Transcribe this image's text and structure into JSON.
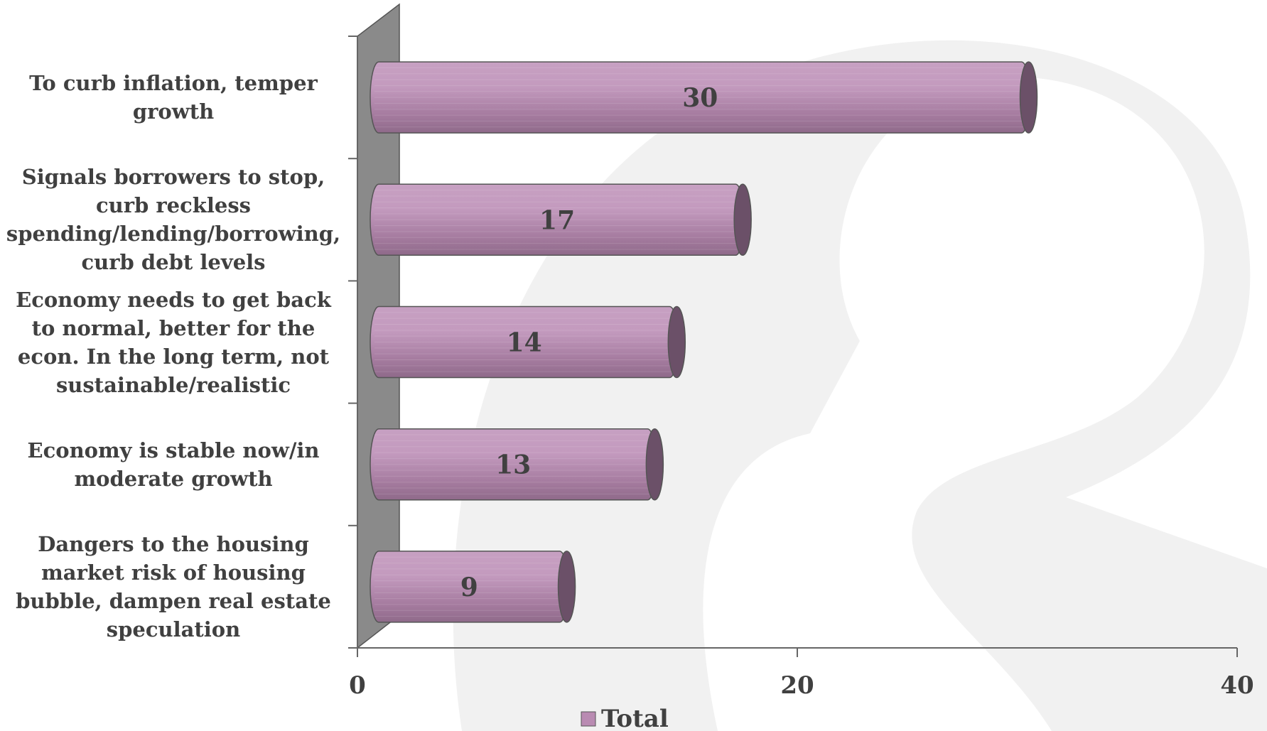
{
  "chart_data": {
    "type": "bar",
    "orientation": "horizontal",
    "categories": [
      "To curb inflation, temper growth",
      "Signals borrowers to stop, curb reckless spending/lending/borrowing, curb debt levels",
      "Economy needs to get back to normal, better for the econ. In the long term, not sustainable/realistic",
      "Economy is stable now/in moderate growth",
      "Dangers to the housing market risk of housing bubble, dampen real estate speculation"
    ],
    "series": [
      {
        "name": "Total",
        "color": "#b98bb2",
        "values": [
          30,
          17,
          14,
          13,
          9
        ]
      }
    ],
    "xlim": [
      0,
      40
    ],
    "xticks": [
      0,
      20,
      40
    ],
    "legend": "bottom"
  }
}
